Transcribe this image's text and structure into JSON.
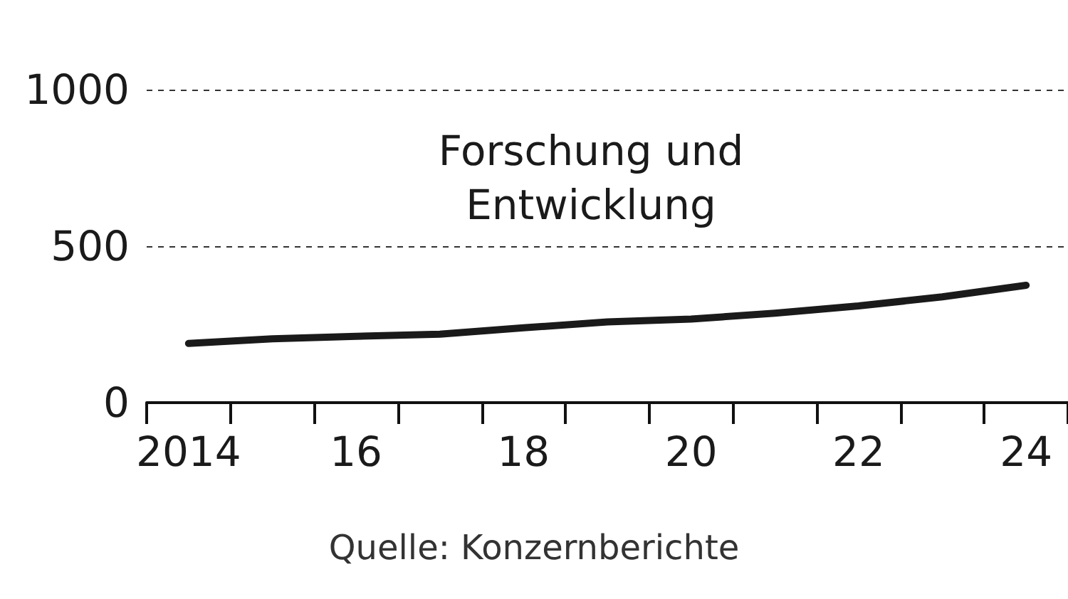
{
  "chart_data": {
    "type": "line",
    "title": "Forschung und\nEntwicklung",
    "annotations": [
      "Quelle: Konzernberichte"
    ],
    "categories": [
      "2014",
      null,
      "16",
      null,
      "18",
      null,
      "20",
      null,
      "22",
      null,
      "24"
    ],
    "series": [
      {
        "color": "#1a1a1a",
        "values": [
          189,
          204,
          212,
          219,
          239,
          258,
          267,
          286,
          309,
          338,
          375
        ]
      }
    ],
    "ylim": [
      0,
      1000
    ],
    "yticks": [
      0,
      500,
      1000
    ],
    "grid": "y",
    "marker": "none",
    "line_style": "solid"
  }
}
